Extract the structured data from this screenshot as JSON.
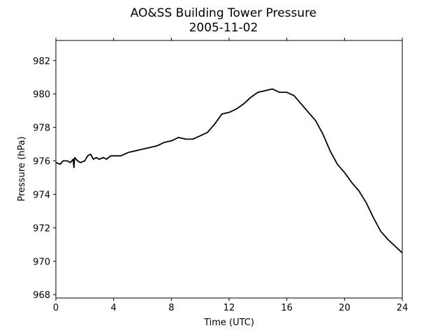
{
  "chart_data": {
    "type": "line",
    "title": "AO&SS Building Tower Pressure",
    "subtitle": "2005-11-02",
    "xlabel": "Time (UTC)",
    "ylabel": "Pressure (hPa)",
    "xlim": [
      0,
      24
    ],
    "ylim": [
      967.8,
      983.2
    ],
    "xticks": [
      0,
      4,
      8,
      12,
      16,
      20,
      24
    ],
    "yticks": [
      968,
      970,
      972,
      974,
      976,
      978,
      980,
      982
    ],
    "grid": false,
    "legend": "none",
    "line_color": "#000000",
    "series": [
      {
        "x": [
          0,
          0.3,
          0.5,
          0.8,
          1.0,
          1.2,
          1.25,
          1.3,
          1.5,
          1.7,
          2.0,
          2.2,
          2.4,
          2.6,
          2.8,
          3.0,
          3.3,
          3.5,
          3.8,
          4.0,
          4.5,
          5.0,
          5.5,
          6.0,
          6.5,
          7.0,
          7.5,
          8.0,
          8.5,
          9.0,
          9.5,
          10.0,
          10.5,
          11.0,
          11.5,
          12.0,
          12.5,
          13.0,
          13.5,
          14.0,
          14.5,
          15.0,
          15.5,
          16.0,
          16.5,
          17.0,
          17.5,
          18.0,
          18.5,
          19.0,
          19.5,
          20.0,
          20.5,
          21.0,
          21.5,
          22.0,
          22.5,
          23.0,
          23.5,
          24.0
        ],
        "values": [
          975.9,
          975.8,
          976.0,
          976.0,
          975.9,
          976.1,
          975.6,
          976.2,
          976.0,
          975.9,
          976.0,
          976.3,
          976.4,
          976.1,
          976.2,
          976.1,
          976.2,
          976.1,
          976.3,
          976.3,
          976.3,
          976.5,
          976.6,
          976.7,
          976.8,
          976.9,
          977.1,
          977.2,
          977.4,
          977.3,
          977.3,
          977.5,
          977.7,
          978.2,
          978.8,
          978.9,
          979.1,
          979.4,
          979.8,
          980.1,
          980.2,
          980.3,
          980.1,
          980.1,
          979.9,
          979.4,
          978.9,
          978.4,
          977.6,
          976.6,
          975.8,
          975.3,
          974.7,
          974.2,
          973.5,
          972.6,
          971.8,
          971.3,
          970.9,
          970.5
        ]
      }
    ]
  }
}
